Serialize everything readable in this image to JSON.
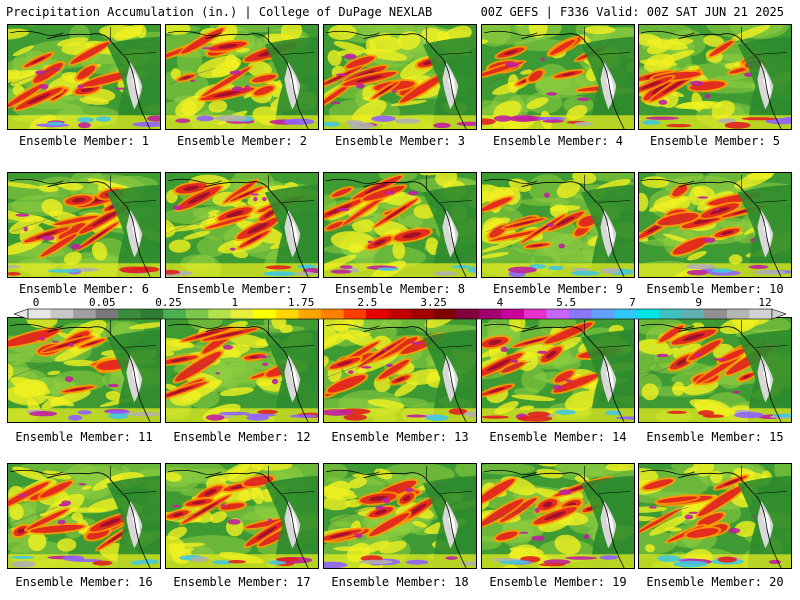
{
  "header": {
    "title_left": "Precipitation Accumulation (in.) | College of DuPage NEXLAB",
    "title_right": "00Z GEFS | F336 Valid: 00Z SAT JUN 21 2025"
  },
  "members": [
    {
      "label": "Ensemble Member: 1"
    },
    {
      "label": "Ensemble Member: 2"
    },
    {
      "label": "Ensemble Member: 3"
    },
    {
      "label": "Ensemble Member: 4"
    },
    {
      "label": "Ensemble Member: 5"
    },
    {
      "label": "Ensemble Member: 6"
    },
    {
      "label": "Ensemble Member: 7"
    },
    {
      "label": "Ensemble Member: 8"
    },
    {
      "label": "Ensemble Member: 9"
    },
    {
      "label": "Ensemble Member: 10"
    },
    {
      "label": "Ensemble Member: 11"
    },
    {
      "label": "Ensemble Member: 12"
    },
    {
      "label": "Ensemble Member: 13"
    },
    {
      "label": "Ensemble Member: 14"
    },
    {
      "label": "Ensemble Member: 15"
    },
    {
      "label": "Ensemble Member: 16"
    },
    {
      "label": "Ensemble Member: 17"
    },
    {
      "label": "Ensemble Member: 18"
    },
    {
      "label": "Ensemble Member: 19"
    },
    {
      "label": "Ensemble Member: 20"
    }
  ],
  "colorbar": {
    "labels": [
      "0",
      "0.05",
      "0.25",
      "1",
      "1.75",
      "2.5",
      "3.25",
      "4",
      "5.5",
      "7",
      "9",
      "12"
    ],
    "colors": [
      "#e6e6e6",
      "#c8c8c8",
      "#a0a0a0",
      "#787878",
      "#3c8c3c",
      "#2e7d32",
      "#4caf50",
      "#7ec850",
      "#b4e04a",
      "#e6f03c",
      "#ffff00",
      "#ffd700",
      "#ffa500",
      "#ff7f00",
      "#ff3c00",
      "#e60000",
      "#c00000",
      "#a00000",
      "#800000",
      "#800040",
      "#a00070",
      "#c8009a",
      "#e632c8",
      "#c864ff",
      "#8c78ff",
      "#64a0ff",
      "#32c8ff",
      "#00e6e6",
      "#40c0c0",
      "#60b0b0",
      "#909090",
      "#b4b4b4",
      "#d2d2d2"
    ]
  },
  "map_palette": {
    "land": "#2e8b2e",
    "ocean_base": "#3e9a32",
    "light": "#8fd040",
    "yellow": "#f0f020",
    "orange": "#ff9a00",
    "red": "#e02020",
    "darkred": "#a0102a",
    "magenta": "#c020a0",
    "purple": "#9060ff",
    "cyan": "#40c8e0",
    "gray": "#b0b0b0",
    "coast": "#000000"
  }
}
